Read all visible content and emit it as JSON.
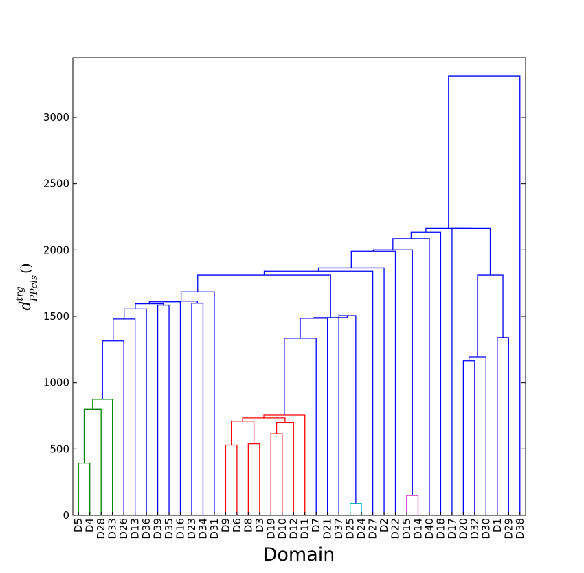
{
  "chart_data": {
    "type": "dendrogram",
    "xlabel": "Domain",
    "ylabel": {
      "base": "d",
      "sup": "trg",
      "sub": "PPcls",
      "suffix": "()"
    },
    "ylim": [
      0,
      3450
    ],
    "yticks": [
      0,
      500,
      1000,
      1500,
      2000,
      2500,
      3000
    ],
    "leaves": [
      "D5",
      "D4",
      "D28",
      "D33",
      "D26",
      "D13",
      "D36",
      "D39",
      "D35",
      "D16",
      "D23",
      "D34",
      "D31",
      "D9",
      "D6",
      "D8",
      "D3",
      "D19",
      "D10",
      "D12",
      "D11",
      "D7",
      "D21",
      "D37",
      "D25",
      "D24",
      "D27",
      "D2",
      "D22",
      "D15",
      "D14",
      "D40",
      "D18",
      "D17",
      "D20",
      "D32",
      "D30",
      "D1",
      "D29",
      "D38"
    ],
    "merges": [
      {
        "left": "D5",
        "right": "D4",
        "height": 395,
        "color": "#008000"
      },
      {
        "left": "m0",
        "right": "D28",
        "height": 800,
        "color": "#008000"
      },
      {
        "left": "m1",
        "right": "D33",
        "height": 875,
        "color": "#008000"
      },
      {
        "left": "m2",
        "right": "D26",
        "height": 1315,
        "color": "#0000ff"
      },
      {
        "left": "m3",
        "right": "D13",
        "height": 1480,
        "color": "#0000ff"
      },
      {
        "left": "m4",
        "right": "D36",
        "height": 1555,
        "color": "#0000ff"
      },
      {
        "left": "D39",
        "right": "D35",
        "height": 1585,
        "color": "#0000ff"
      },
      {
        "left": "m5",
        "right": "m6",
        "height": 1595,
        "color": "#0000ff"
      },
      {
        "left": "m7",
        "right": "D16",
        "height": 1610,
        "color": "#0000ff"
      },
      {
        "left": "D23",
        "right": "D34",
        "height": 1600,
        "color": "#0000ff"
      },
      {
        "left": "m8",
        "right": "m9",
        "height": 1615,
        "color": "#0000ff"
      },
      {
        "left": "m10",
        "right": "D31",
        "height": 1685,
        "color": "#0000ff"
      },
      {
        "left": "D9",
        "right": "D6",
        "height": 530,
        "color": "#ff0000"
      },
      {
        "left": "D8",
        "right": "D3",
        "height": 540,
        "color": "#ff0000"
      },
      {
        "left": "m12",
        "right": "m13",
        "height": 710,
        "color": "#ff0000"
      },
      {
        "left": "D19",
        "right": "D10",
        "height": 615,
        "color": "#ff0000"
      },
      {
        "left": "m15",
        "right": "D12",
        "height": 700,
        "color": "#ff0000"
      },
      {
        "left": "m14",
        "right": "m16",
        "height": 735,
        "color": "#ff0000"
      },
      {
        "left": "m17",
        "right": "D11",
        "height": 755,
        "color": "#ff0000"
      },
      {
        "left": "m18",
        "right": "D7",
        "height": 1335,
        "color": "#0000ff"
      },
      {
        "left": "m19",
        "right": "D21",
        "height": 1485,
        "color": "#0000ff"
      },
      {
        "left": "D24",
        "right": "D25",
        "height": 90,
        "color": "#00bfbf"
      },
      {
        "left": "D37",
        "right": "m21",
        "height": 1505,
        "color": "#0000ff"
      },
      {
        "left": "m20",
        "right": "m22",
        "height": 1490,
        "color": "#0000ff"
      },
      {
        "left": "m11",
        "right": "m23",
        "height": 1810,
        "color": "#0000ff"
      },
      {
        "left": "m24",
        "right": "D27",
        "height": 1840,
        "color": "#0000ff"
      },
      {
        "left": "m25",
        "right": "D2",
        "height": 1865,
        "color": "#0000ff"
      },
      {
        "left": "m26",
        "right": "D22",
        "height": 1990,
        "color": "#0000ff"
      },
      {
        "left": "D15",
        "right": "D14",
        "height": 150,
        "color": "#bf00bf"
      },
      {
        "left": "m27",
        "right": "m28",
        "height": 2000,
        "color": "#0000ff"
      },
      {
        "left": "m29",
        "right": "D40",
        "height": 2085,
        "color": "#0000ff"
      },
      {
        "left": "m30",
        "right": "D18",
        "height": 2135,
        "color": "#0000ff"
      },
      {
        "left": "D20",
        "right": "D32",
        "height": 1165,
        "color": "#0000ff"
      },
      {
        "left": "m32",
        "right": "D30",
        "height": 1195,
        "color": "#0000ff"
      },
      {
        "left": "D1",
        "right": "D29",
        "height": 1340,
        "color": "#0000ff"
      },
      {
        "left": "m33",
        "right": "m34",
        "height": 1810,
        "color": "#0000ff"
      },
      {
        "left": "D17",
        "right": "m35",
        "height": 2165,
        "color": "#0000ff"
      },
      {
        "left": "m31",
        "right": "m36",
        "height": 2165,
        "color": "#0000ff"
      },
      {
        "left": "m37",
        "right": "D38",
        "height": 3310,
        "color": "#0000ff"
      }
    ],
    "grid": false
  }
}
